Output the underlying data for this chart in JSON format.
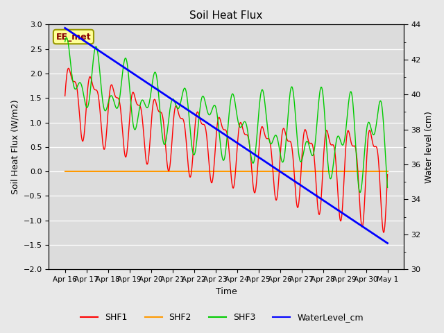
{
  "title": "Soil Heat Flux",
  "ylabel_left": "Soil Heat Flux (W/m2)",
  "ylabel_right": "Water level (cm)",
  "xlabel": "Time",
  "ylim_left": [
    -2.0,
    3.0
  ],
  "ylim_right": [
    30,
    44
  ],
  "background_color": "#e8e8e8",
  "grid_color": "#ffffff",
  "annotation_text": "EE_met",
  "annotation_facecolor": "#ffff99",
  "annotation_edgecolor": "#999900",
  "x_ticks": [
    "Apr 16",
    "Apr 17",
    "Apr 18",
    "Apr 19",
    "Apr 20",
    "Apr 21",
    "Apr 22",
    "Apr 23",
    "Apr 24",
    "Apr 25",
    "Apr 26",
    "Apr 27",
    "Apr 28",
    "Apr 29",
    "Apr 30",
    "May 1"
  ],
  "colors": {
    "SHF1": "#ff0000",
    "SHF2": "#ff9900",
    "SHF3": "#00cc00",
    "WaterLevel": "#0000ff"
  },
  "legend_entries": [
    "SHF1",
    "SHF2",
    "SHF3",
    "WaterLevel_cm"
  ]
}
